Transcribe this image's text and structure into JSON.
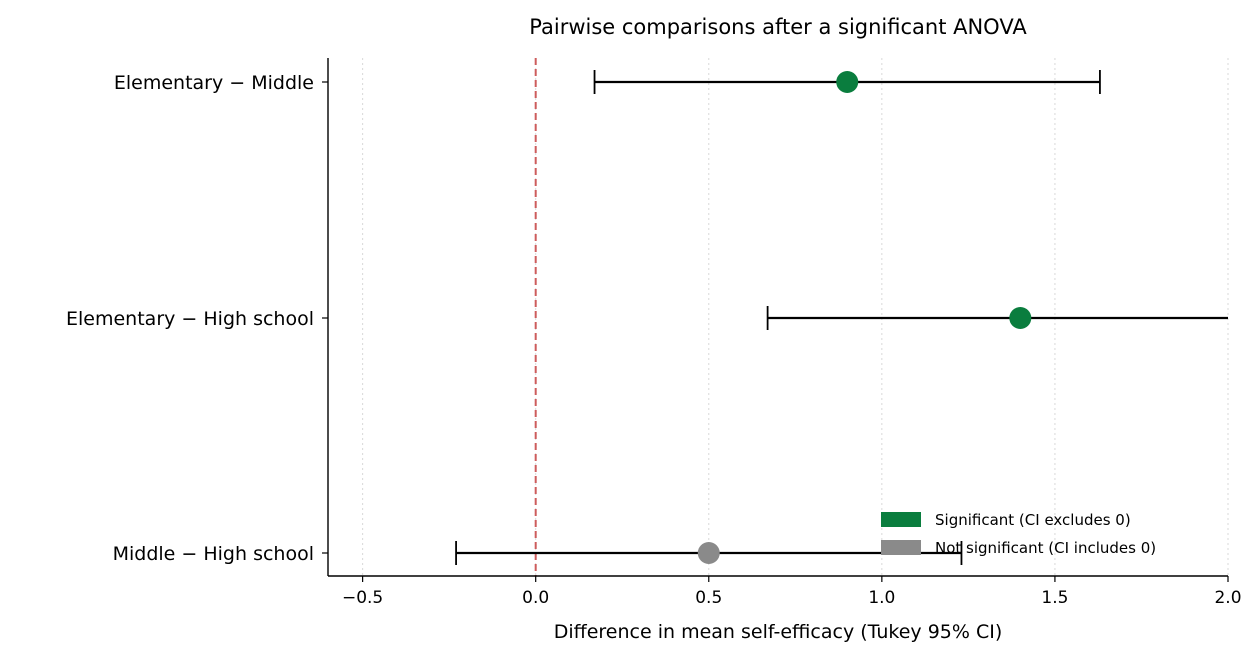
{
  "chart_data": {
    "type": "scatter",
    "title": "Pairwise comparisons after a significant ANOVA",
    "xlabel": "Difference in mean self-efficacy (Tukey 95% CI)",
    "ylabel": "",
    "xlim": [
      -0.6,
      2.0
    ],
    "x_ticks": [
      -0.5,
      0.0,
      0.5,
      1.0,
      1.5,
      2.0
    ],
    "x_tick_labels": [
      "−0.5",
      "0.0",
      "0.5",
      "1.0",
      "1.5",
      "2.0"
    ],
    "grid": "x-dotted",
    "reference_line": {
      "x": 0.0,
      "style": "dashed",
      "color": "#cd5c5c"
    },
    "categories": [
      "Elementary − Middle",
      "Elementary − High school",
      "Middle − High school"
    ],
    "comparisons": [
      {
        "label": "Elementary − Middle",
        "estimate": 0.9,
        "ci_low": 0.17,
        "ci_high": 1.63,
        "significant": true
      },
      {
        "label": "Elementary − High school",
        "estimate": 1.4,
        "ci_low": 0.67,
        "ci_high": 2.13,
        "significant": true
      },
      {
        "label": "Middle − High school",
        "estimate": 0.5,
        "ci_low": -0.23,
        "ci_high": 1.23,
        "significant": false
      }
    ],
    "colors": {
      "significant": "#0a7d3e",
      "not_significant": "#8a8a8a",
      "errorbar": "#000000"
    },
    "legend": {
      "position": "lower-right",
      "entries": [
        {
          "label": "Significant (CI excludes 0)",
          "key": "significant"
        },
        {
          "label": "Not significant (CI includes 0)",
          "key": "not_significant"
        }
      ]
    }
  }
}
